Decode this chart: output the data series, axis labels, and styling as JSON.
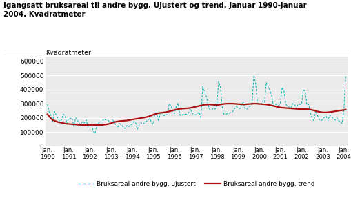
{
  "title_line1": "Igangsatt bruksareal til andre bygg. Ujustert og trend. Januar 1990-januar",
  "title_line2": "2004. Kvadratmeter",
  "ylabel": "Kvadratmeter",
  "bg_color": "#ffffff",
  "plot_bg_color": "#ebebeb",
  "grid_color": "#ffffff",
  "ujustert_color": "#00b0b0",
  "trend_color": "#aa1111",
  "legend_ujustert": "Bruksareal andre bygg, ujustert",
  "legend_trend": "Bruksareal andre bygg, trend",
  "ylim": [
    0,
    630000
  ],
  "yticks": [
    0,
    100000,
    200000,
    300000,
    400000,
    500000,
    600000
  ],
  "ujustert": [
    295000,
    240000,
    215000,
    175000,
    245000,
    220000,
    195000,
    175000,
    185000,
    225000,
    215000,
    160000,
    195000,
    195000,
    200000,
    140000,
    200000,
    185000,
    160000,
    155000,
    175000,
    165000,
    185000,
    135000,
    145000,
    155000,
    105000,
    90000,
    155000,
    160000,
    175000,
    170000,
    195000,
    185000,
    185000,
    175000,
    155000,
    185000,
    165000,
    145000,
    130000,
    160000,
    150000,
    135000,
    125000,
    145000,
    135000,
    150000,
    155000,
    175000,
    165000,
    120000,
    150000,
    165000,
    155000,
    165000,
    175000,
    185000,
    195000,
    165000,
    155000,
    235000,
    225000,
    175000,
    240000,
    230000,
    215000,
    225000,
    220000,
    300000,
    285000,
    245000,
    230000,
    280000,
    305000,
    220000,
    215000,
    225000,
    225000,
    225000,
    235000,
    265000,
    230000,
    225000,
    220000,
    230000,
    240000,
    195000,
    420000,
    385000,
    350000,
    295000,
    255000,
    260000,
    265000,
    260000,
    295000,
    455000,
    420000,
    280000,
    225000,
    225000,
    230000,
    230000,
    240000,
    245000,
    265000,
    280000,
    270000,
    265000,
    295000,
    310000,
    265000,
    260000,
    275000,
    285000,
    310000,
    500000,
    440000,
    305000,
    295000,
    300000,
    320000,
    310000,
    450000,
    420000,
    395000,
    360000,
    285000,
    295000,
    295000,
    285000,
    305000,
    415000,
    390000,
    300000,
    280000,
    275000,
    270000,
    300000,
    295000,
    265000,
    295000,
    295000,
    295000,
    395000,
    390000,
    290000,
    295000,
    235000,
    195000,
    180000,
    250000,
    215000,
    190000,
    180000,
    190000,
    205000,
    210000,
    180000,
    220000,
    205000,
    195000,
    185000,
    200000,
    180000,
    170000,
    160000,
    260000,
    500000
  ],
  "trend": [
    225000,
    210000,
    195000,
    185000,
    180000,
    175000,
    170000,
    168000,
    165000,
    163000,
    160000,
    158000,
    157000,
    156000,
    155000,
    154000,
    153000,
    152000,
    151000,
    150000,
    150000,
    150000,
    150000,
    150000,
    150000,
    150000,
    150000,
    150000,
    150000,
    150000,
    150000,
    150000,
    151000,
    153000,
    155000,
    158000,
    162000,
    166000,
    170000,
    173000,
    175000,
    177000,
    178000,
    179000,
    180000,
    181000,
    183000,
    185000,
    188000,
    190000,
    192000,
    194000,
    196000,
    198000,
    200000,
    202000,
    205000,
    208000,
    212000,
    217000,
    222000,
    226000,
    230000,
    233000,
    235000,
    237000,
    238000,
    240000,
    242000,
    245000,
    248000,
    252000,
    255000,
    258000,
    261000,
    263000,
    264000,
    265000,
    266000,
    267000,
    268000,
    270000,
    272000,
    275000,
    278000,
    281000,
    284000,
    287000,
    290000,
    292000,
    293000,
    294000,
    294000,
    293000,
    292000,
    291000,
    290000,
    292000,
    294000,
    296000,
    298000,
    299000,
    300000,
    300000,
    300000,
    300000,
    299000,
    298000,
    297000,
    296000,
    295000,
    295000,
    295000,
    296000,
    297000,
    298000,
    299000,
    300000,
    300000,
    299000,
    298000,
    297000,
    296000,
    295000,
    294000,
    292000,
    290000,
    287000,
    284000,
    281000,
    278000,
    275000,
    273000,
    271000,
    270000,
    269000,
    268000,
    267000,
    266000,
    265000,
    264000,
    263000,
    262000,
    261000,
    261000,
    261000,
    261000,
    261000,
    260000,
    258000,
    255000,
    252000,
    248000,
    245000,
    242000,
    240000,
    238000,
    238000,
    238000,
    239000,
    240000,
    242000,
    244000,
    246000,
    248000,
    250000,
    252000,
    253000,
    255000,
    258000
  ]
}
